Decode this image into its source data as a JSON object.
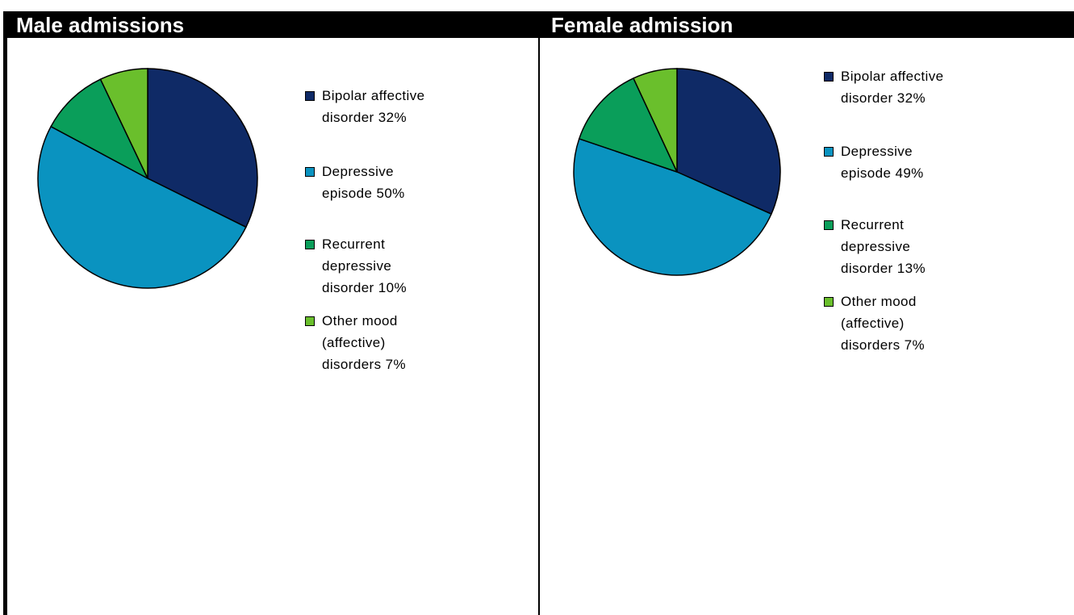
{
  "chart_data": [
    {
      "type": "pie",
      "title": "Male admissions",
      "categories": [
        "Bipolar affective disorder 32%",
        "Depressive episode 50%",
        "Recurrent depressive disorder 10%",
        "Other mood (affective) disorders 7%"
      ],
      "values": [
        32,
        50,
        10,
        7
      ],
      "colors": [
        "#0f2a66",
        "#0a93c0",
        "#0a9e5a",
        "#6abf2c"
      ]
    },
    {
      "type": "pie",
      "title": "Female admission",
      "categories": [
        "Bipolar affective disorder 32%",
        "Depressive episode 49%",
        "Recurrent depressive disorder 13%",
        "Other mood (affective) disorders 7%"
      ],
      "values": [
        32,
        49,
        13,
        7
      ],
      "colors": [
        "#0f2a66",
        "#0a93c0",
        "#0a9e5a",
        "#6abf2c"
      ]
    }
  ]
}
